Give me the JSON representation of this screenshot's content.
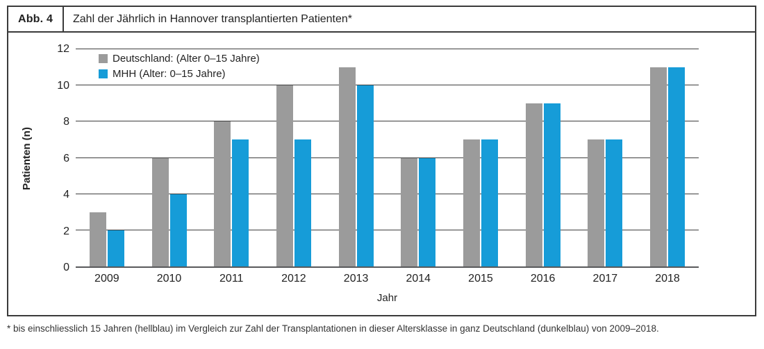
{
  "header": {
    "figure_label": "Abb. 4",
    "title": "Zahl der Jährlich in Hannover transplantierten Patienten*"
  },
  "footnote": "* bis einschliesslich 15 Jahren (hellblau) im Vergleich zur Zahl der Transplantationen in dieser Altersklasse in ganz Deutschland (dunkelblau) von 2009–2018.",
  "colors": {
    "deutschland_bar": "#9b9b9b",
    "mhh_bar": "#169cd8",
    "grid_line": "#3d3d3d",
    "axis_line": "#58595b",
    "frame_border": "#3a3a3a"
  },
  "chart_data": {
    "type": "bar",
    "title": "Zahl der Jährlich in Hannover transplantierten Patienten*",
    "xlabel": "Jahr",
    "ylabel": "Patienten (n)",
    "ylim": [
      0,
      12
    ],
    "yticks": [
      0,
      2,
      4,
      6,
      8,
      10,
      12
    ],
    "grid": true,
    "legend_position": "top-left-inside",
    "categories": [
      "2009",
      "2010",
      "2011",
      "2012",
      "2013",
      "2014",
      "2015",
      "2016",
      "2017",
      "2018"
    ],
    "series": [
      {
        "name": "Deutschland: (Alter 0–15 Jahre)",
        "key": "deutschland",
        "color": "#9b9b9b",
        "values": [
          3,
          6,
          8,
          10,
          11,
          6,
          7,
          9,
          7,
          11
        ]
      },
      {
        "name": "MHH (Alter: 0–15 Jahre)",
        "key": "mhh",
        "color": "#169cd8",
        "values": [
          2,
          4,
          7,
          7,
          10,
          6,
          7,
          9,
          7,
          11
        ]
      }
    ]
  }
}
